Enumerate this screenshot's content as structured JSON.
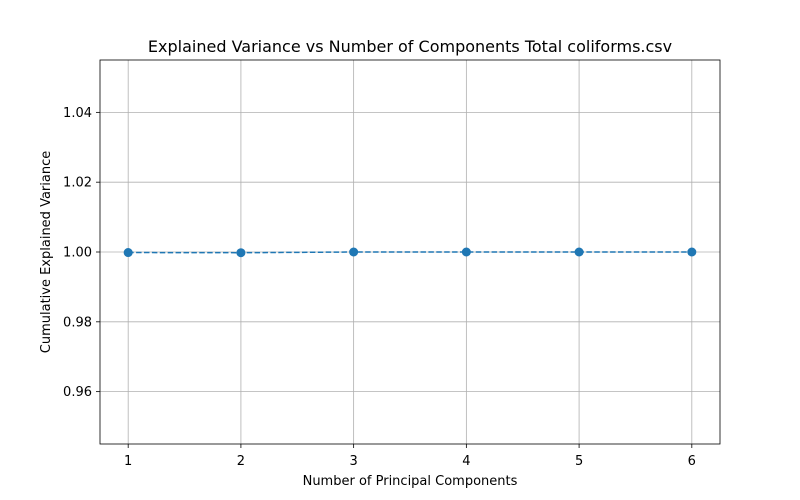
{
  "chart_data": {
    "type": "line",
    "title": "Explained Variance vs Number of Components Total coliforms.csv",
    "xlabel": "Number of Principal Components",
    "ylabel": "Cumulative Explained Variance",
    "x": [
      1,
      2,
      3,
      4,
      5,
      6
    ],
    "x_ticks": [
      "1",
      "2",
      "3",
      "4",
      "5",
      "6"
    ],
    "y_ticks": [
      "0.96",
      "0.98",
      "1.00",
      "1.02",
      "1.04"
    ],
    "y_tick_values": [
      0.96,
      0.98,
      1.0,
      1.02,
      1.04
    ],
    "series": [
      {
        "values": [
          0.99985,
          0.9998,
          1.0,
          1.0,
          1.0,
          1.0
        ],
        "color": "#1f77b4",
        "linestyle": "dashed",
        "marker": "circle"
      }
    ],
    "xlim": [
      0.75,
      6.25
    ],
    "ylim": [
      0.945,
      1.055
    ],
    "grid": true
  }
}
